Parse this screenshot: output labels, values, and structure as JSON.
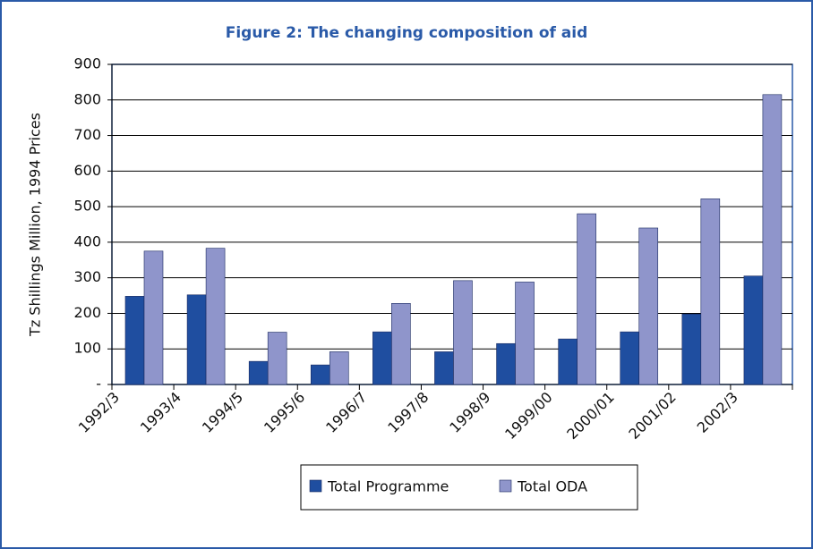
{
  "chart_data": {
    "type": "bar",
    "title": "Figure 2: The changing composition of aid",
    "y_label": "Tz Shillings Million, 1994 Prices",
    "categories": [
      "1992/3",
      "1993/4",
      "1994/5",
      "1995/6",
      "1996/7",
      "1997/8",
      "1998/9",
      "1999/00",
      "2000/01",
      "2001/02",
      "2002/3"
    ],
    "series": [
      {
        "name": "Total Programme",
        "color": "#1f4ea0",
        "values": [
          248,
          252,
          65,
          55,
          148,
          92,
          115,
          128,
          148,
          198,
          305
        ]
      },
      {
        "name": "Total ODA",
        "color": "#8f95cb",
        "values": [
          375,
          383,
          147,
          92,
          228,
          292,
          288,
          480,
          440,
          522,
          815
        ]
      }
    ],
    "ylim": [
      0,
      900
    ],
    "yticks": [
      {
        "value": 0,
        "label": "-"
      },
      100,
      200,
      300,
      400,
      500,
      600,
      700,
      800,
      900
    ],
    "grid": true,
    "legend": "bottom"
  }
}
